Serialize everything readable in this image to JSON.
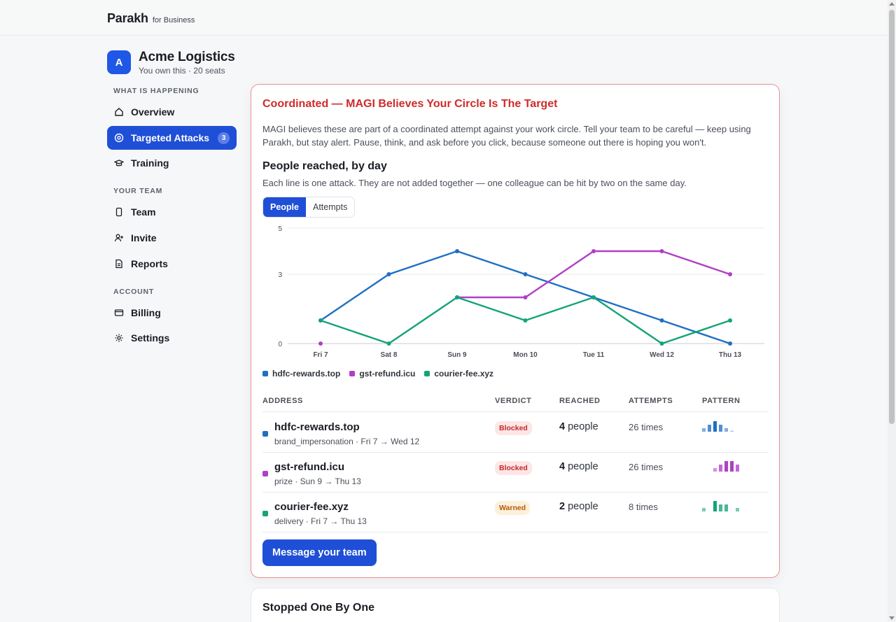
{
  "brand": {
    "name": "Parakh",
    "sub": "for Business"
  },
  "org": {
    "initial": "A",
    "name": "Acme Logistics",
    "meta": "You own this · 20 seats"
  },
  "nav": {
    "sections": [
      {
        "label": "WHAT IS HAPPENING"
      },
      {
        "label": "YOUR TEAM"
      },
      {
        "label": "ACCOUNT"
      }
    ],
    "items": [
      {
        "label": "Overview",
        "icon": "home-icon"
      },
      {
        "label": "Targeted Attacks",
        "icon": "target-icon",
        "badge": "3",
        "active": true
      },
      {
        "label": "Training",
        "icon": "graduation-cap-icon"
      },
      {
        "label": "Team",
        "icon": "phone-icon"
      },
      {
        "label": "Invite",
        "icon": "user-plus-icon"
      },
      {
        "label": "Reports",
        "icon": "document-icon"
      },
      {
        "label": "Billing",
        "icon": "credit-card-icon"
      },
      {
        "label": "Settings",
        "icon": "gear-icon"
      }
    ]
  },
  "alert": {
    "title": "Coordinated — MAGI Believes Your Circle Is The Target",
    "description": "MAGI believes these are part of a coordinated attempt against your work circle. Tell your team to be careful — keep using Parakh, but stay alert. Pause, think, and ask before you click, because someone out there is hoping you won't.",
    "chart_title": "People reached, by day",
    "chart_subtitle": "Each line is one attack. They are not added together — one colleague can be hit by two on the same day.",
    "toggle": {
      "people": "People",
      "attempts": "Attempts"
    },
    "columns": {
      "address": "ADDRESS",
      "verdict": "VERDICT",
      "reached": "REACHED",
      "attempts": "ATTEMPTS",
      "pattern": "PATTERN"
    },
    "rows": [
      {
        "address": "hdfc-rewards.top",
        "meta": "brand_impersonation · Fri 7 → Wed 12",
        "verdict": "Blocked",
        "reached_num": "4",
        "reached_unit": " people",
        "attempts": "26 times",
        "color": "#1f6fc4",
        "pattern": [
          1,
          2,
          3,
          2,
          1,
          0.2
        ]
      },
      {
        "address": "gst-refund.icu",
        "meta": "prize · Sun 9 → Thu 13",
        "verdict": "Blocked",
        "reached_num": "4",
        "reached_unit": " people",
        "attempts": "26 times",
        "color": "#b03fc6",
        "pattern": [
          0,
          0,
          1,
          2,
          3,
          3,
          2
        ]
      },
      {
        "address": "courier-fee.xyz",
        "meta": "delivery · Fri 7 → Thu 13",
        "verdict": "Warned",
        "reached_num": "2",
        "reached_unit": " people",
        "attempts": "8 times",
        "color": "#14a37a",
        "pattern": [
          1,
          0,
          3,
          2,
          2,
          0,
          1
        ]
      }
    ],
    "message_button": "Message your team"
  },
  "chart_data": {
    "type": "line",
    "categories": [
      "Fri 7",
      "Sat 8",
      "Sun 9",
      "Mon 10",
      "Tue 11",
      "Wed 12",
      "Thu 13"
    ],
    "y_ticks": [
      "0",
      "3",
      "5"
    ],
    "ylim": [
      0,
      5
    ],
    "grid": true,
    "legend_position": "bottom-left",
    "series": [
      {
        "name": "hdfc-rewards.top",
        "color": "#1f6fc4",
        "values": [
          1,
          3,
          4,
          3,
          2,
          1,
          0
        ]
      },
      {
        "name": "gst-refund.icu",
        "color": "#b03fc6",
        "values": [
          0,
          null,
          2,
          2,
          4,
          4,
          3
        ]
      },
      {
        "name": "courier-fee.xyz",
        "color": "#14a37a",
        "values": [
          1,
          0,
          2,
          1,
          2,
          0,
          1
        ]
      }
    ]
  },
  "next_card": {
    "title": "Stopped One By One"
  }
}
